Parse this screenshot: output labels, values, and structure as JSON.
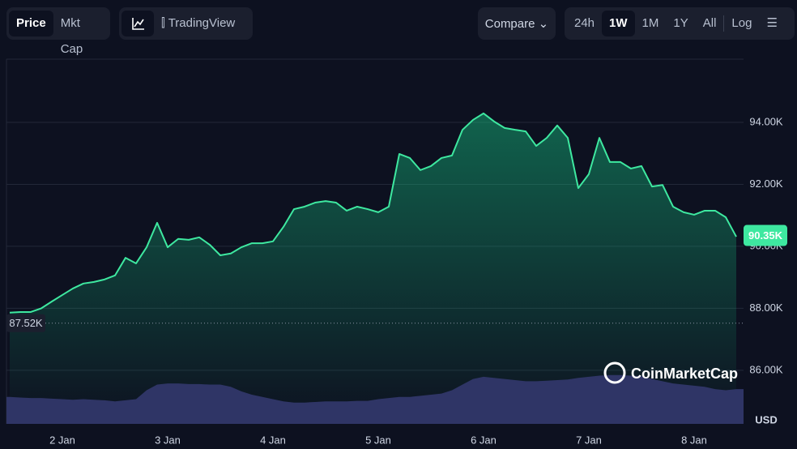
{
  "toolbar": {
    "tabs": [
      "Price",
      "Mkt Cap"
    ],
    "views": [
      "TradingView"
    ],
    "compare": "Compare",
    "ranges": [
      "24h",
      "1W",
      "1M",
      "1Y",
      "All"
    ],
    "log": "Log"
  },
  "watermark": "CoinMarketCap",
  "chart_data": {
    "type": "line",
    "categories": [
      null,
      null,
      null,
      null,
      null,
      "2 Jan",
      null,
      null,
      null,
      null,
      null,
      null,
      null,
      null,
      null,
      "3 Jan",
      null,
      null,
      null,
      null,
      null,
      null,
      null,
      null,
      null,
      "4 Jan",
      null,
      null,
      null,
      null,
      null,
      null,
      null,
      null,
      null,
      "5 Jan",
      null,
      null,
      null,
      null,
      null,
      null,
      null,
      null,
      null,
      "6 Jan",
      null,
      null,
      null,
      null,
      null,
      null,
      null,
      null,
      null,
      "7 Jan",
      null,
      null,
      null,
      null,
      null,
      null,
      null,
      null,
      null,
      "8 Jan",
      null,
      null,
      null,
      null
    ],
    "series": [
      {
        "color": "#3ee8a0",
        "values": [
          87860,
          87880,
          87880,
          88000,
          88220,
          88430,
          88640,
          88800,
          88850,
          88930,
          89060,
          89630,
          89450,
          89970,
          90760,
          89970,
          90240,
          90210,
          90290,
          90050,
          89710,
          89770,
          89970,
          90100,
          90100,
          90160,
          90630,
          91200,
          91280,
          91410,
          91460,
          91410,
          91150,
          91280,
          91200,
          91100,
          91280,
          92980,
          92850,
          92460,
          92590,
          92850,
          92930,
          93760,
          94080,
          94290,
          94030,
          93820,
          93760,
          93710,
          93240,
          93500,
          93900,
          93500,
          91880,
          92330,
          93500,
          92720,
          92720,
          92510,
          92590,
          91930,
          91980,
          91280,
          91100,
          91020,
          91150,
          91150,
          90940,
          90310
        ]
      },
      {
        "color": "#2f3566",
        "axis": "y2",
        "values": [
          48,
          47,
          46,
          46,
          45,
          44,
          43,
          44,
          43,
          42,
          40,
          42,
          44,
          60,
          70,
          72,
          72,
          71,
          71,
          70,
          70,
          66,
          58,
          52,
          48,
          44,
          40,
          38,
          38,
          39,
          40,
          40,
          40,
          41,
          41,
          44,
          46,
          48,
          48,
          50,
          52,
          54,
          60,
          70,
          80,
          84,
          82,
          80,
          78,
          76,
          76,
          77,
          78,
          79,
          82,
          84,
          86,
          87,
          87,
          86,
          85,
          80,
          76,
          72,
          70,
          68,
          66,
          62,
          60,
          62
        ]
      }
    ],
    "ylim": [
      84270,
      96040
    ],
    "yticks": [
      {
        "value": 86000,
        "label": "86.00K"
      },
      {
        "value": 88000,
        "label": "88.00K"
      },
      {
        "value": 90000,
        "label": "90.00K"
      },
      {
        "value": 92000,
        "label": "92.00K"
      },
      {
        "value": 94000,
        "label": "94.00K"
      }
    ],
    "y2lim": [
      0,
      650
    ],
    "grid": true,
    "y_unit": "USD",
    "last_value": {
      "value": 90350,
      "label": "90.35K"
    },
    "open_value": {
      "value": 87520,
      "label": "87.52K"
    }
  }
}
